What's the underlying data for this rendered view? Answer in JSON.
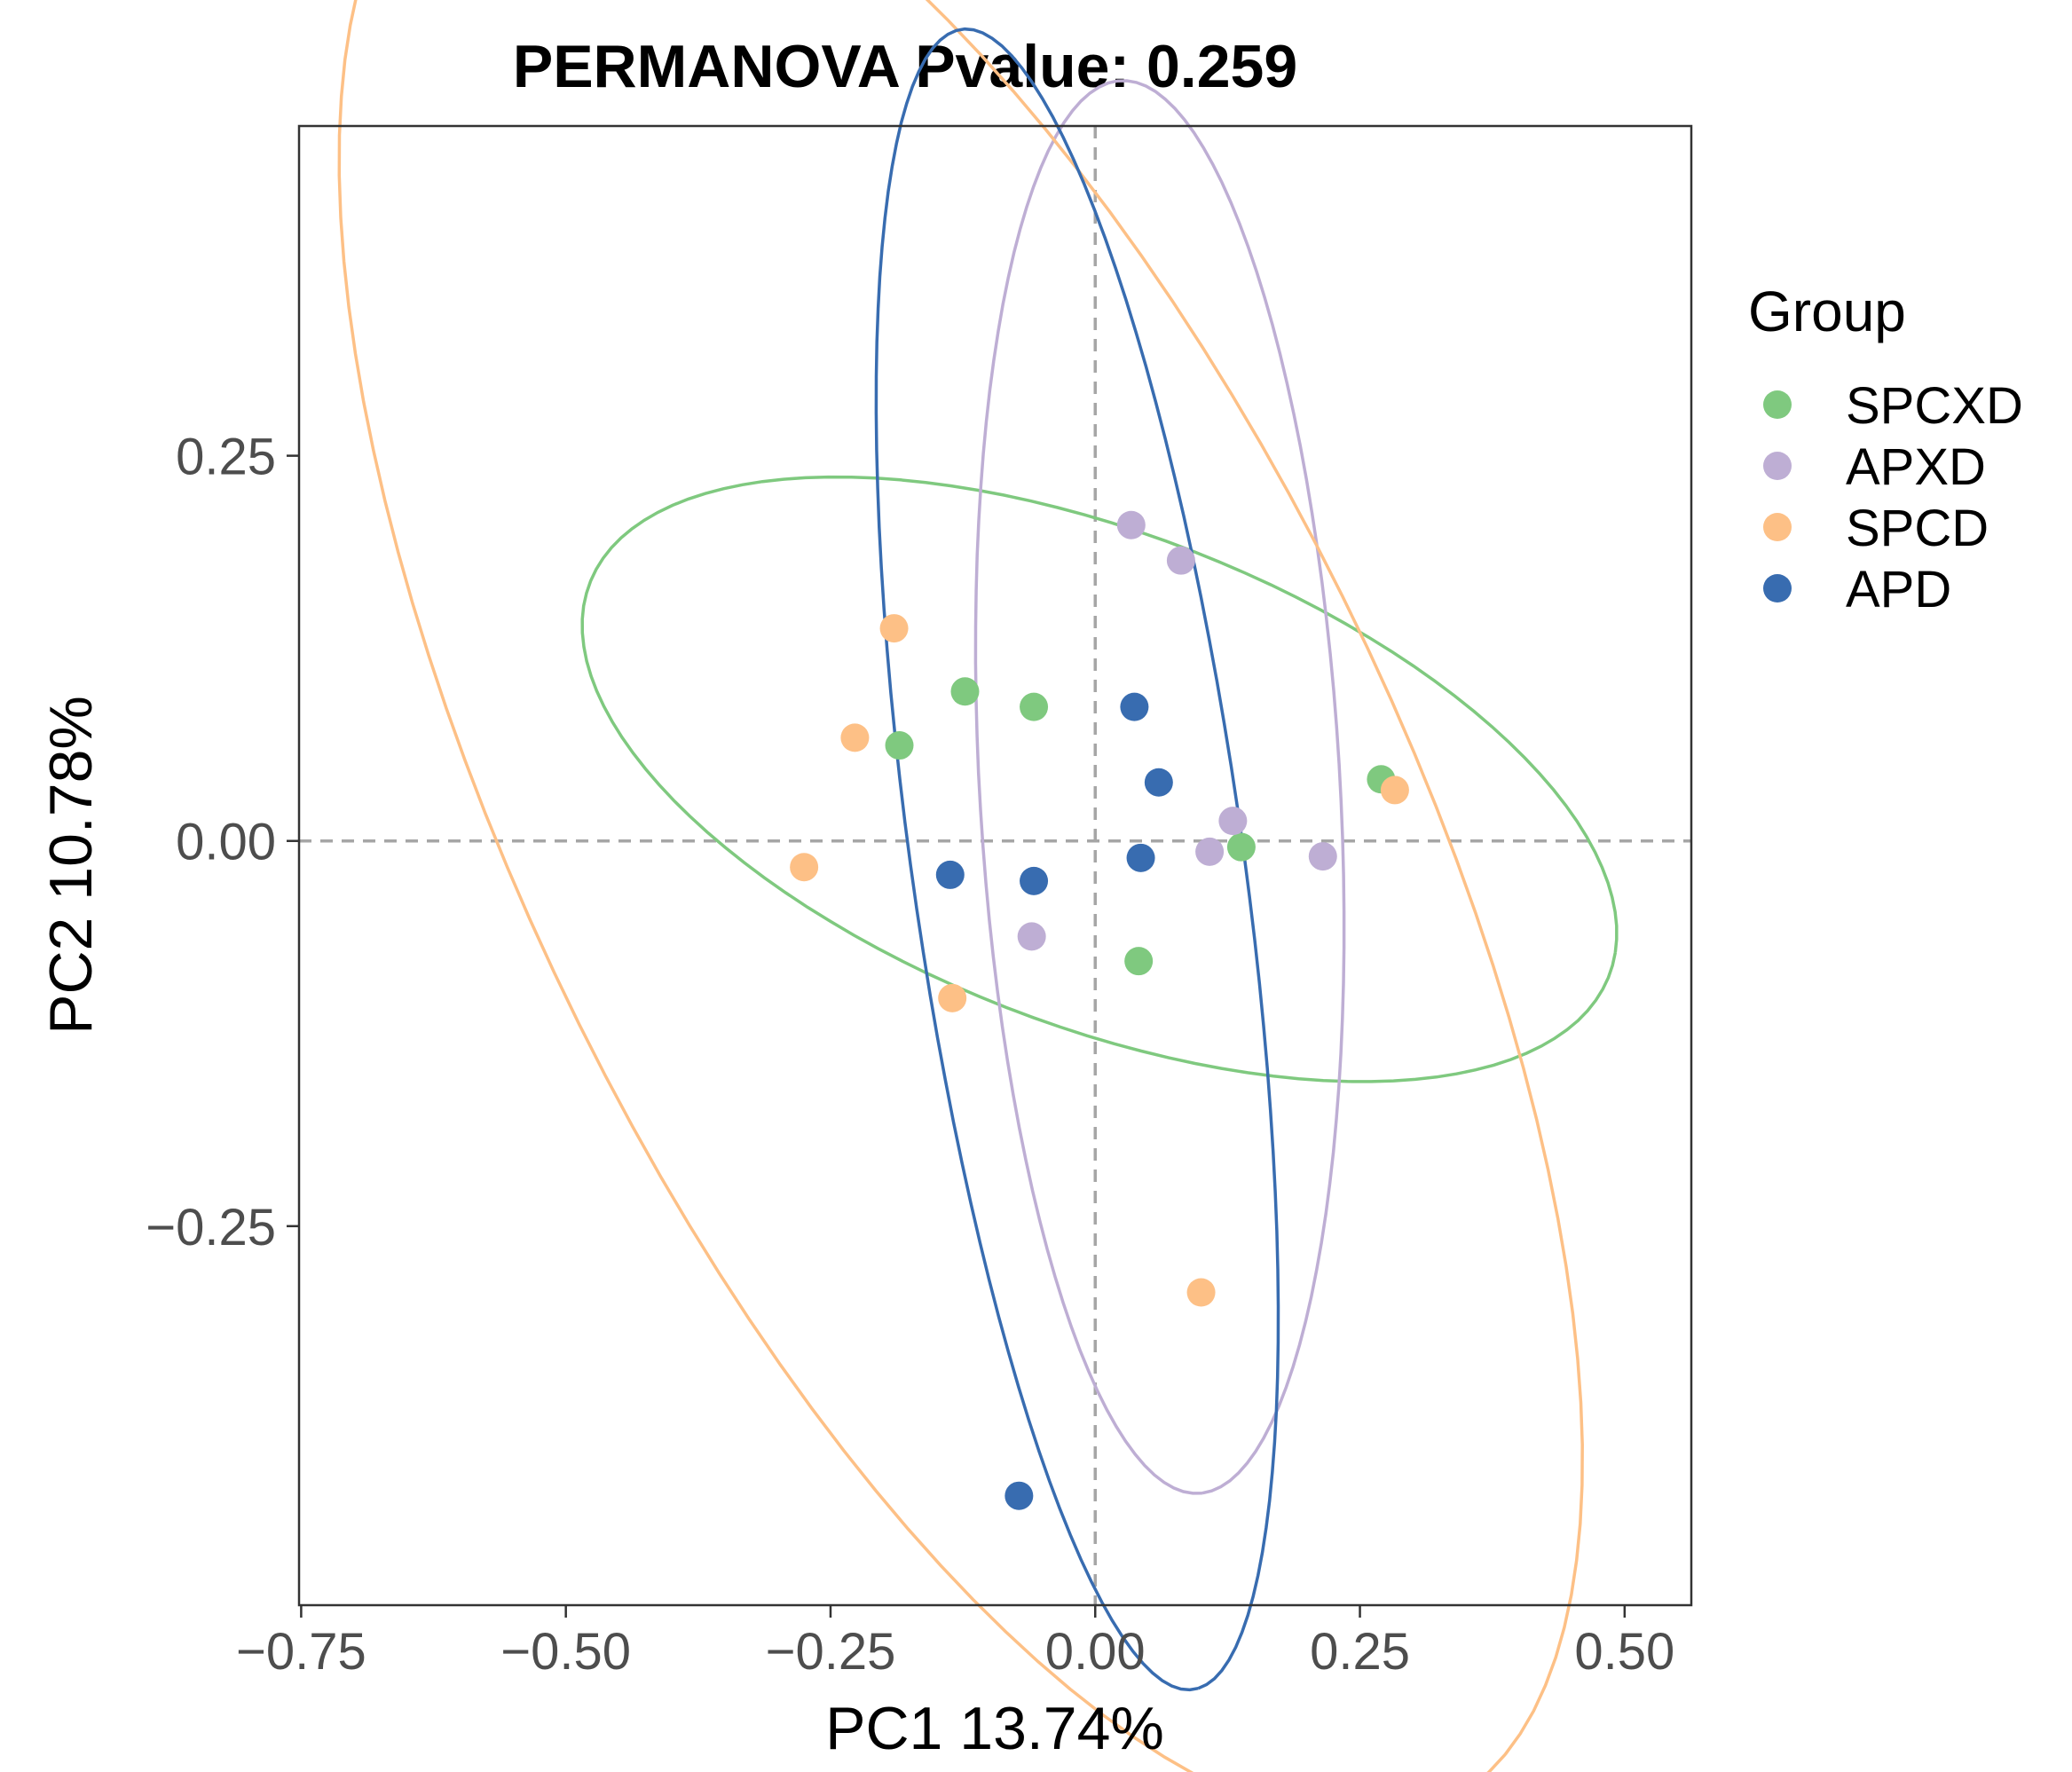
{
  "chart_data": {
    "type": "scatter",
    "title": "PERMANOVA Pvalue: 0.259",
    "xlabel": "PC1 13.74%",
    "ylabel": "PC2 10.78%",
    "xlim": [
      -0.752,
      0.563
    ],
    "ylim": [
      -0.496,
      0.464
    ],
    "x_ticks": [
      -0.75,
      -0.5,
      -0.25,
      0.0,
      0.25,
      0.5
    ],
    "x_tick_labels": [
      "−0.75",
      "−0.50",
      "−0.25",
      "0.00",
      "0.25",
      "0.50"
    ],
    "y_ticks": [
      0.25,
      0.0,
      -0.25
    ],
    "y_tick_labels": [
      "0.25",
      "0.00",
      "−0.25"
    ],
    "reference_lines": {
      "x": 0.0,
      "y": 0.0
    },
    "grid": false,
    "legend": {
      "title": "Group",
      "position": "right"
    },
    "series": [
      {
        "name": "SPCXD",
        "color": "#7fc97f",
        "points": [
          [
            -0.123,
            0.097
          ],
          [
            -0.058,
            0.087
          ],
          [
            -0.185,
            0.062
          ],
          [
            0.27,
            0.04
          ],
          [
            0.138,
            -0.004
          ],
          [
            0.041,
            -0.078
          ]
        ],
        "ellipse": {
          "center": [
            0.004,
            0.04
          ],
          "semi_axes": [
            0.5,
            0.165
          ],
          "angle_deg": -13
        }
      },
      {
        "name": "APXD",
        "color": "#beaed4",
        "points": [
          [
            0.034,
            0.205
          ],
          [
            0.081,
            0.182
          ],
          [
            0.13,
            0.013
          ],
          [
            0.108,
            -0.007
          ],
          [
            0.215,
            -0.01
          ],
          [
            -0.06,
            -0.062
          ]
        ],
        "ellipse": {
          "center": [
            0.061,
            0.035
          ],
          "semi_axes": [
            0.46,
            0.17
          ],
          "angle_deg": -85
        }
      },
      {
        "name": "SPCD",
        "color": "#fdc086",
        "points": [
          [
            -0.19,
            0.138
          ],
          [
            -0.227,
            0.067
          ],
          [
            -0.275,
            -0.017
          ],
          [
            -0.135,
            -0.102
          ],
          [
            0.283,
            0.033
          ],
          [
            0.1,
            -0.293
          ]
        ],
        "ellipse": {
          "center": [
            -0.127,
            0.02
          ],
          "semi_axes": [
            0.8,
            0.37
          ],
          "angle_deg": -50
        }
      },
      {
        "name": "APD",
        "color": "#386cb0",
        "points": [
          [
            0.037,
            0.087
          ],
          [
            0.06,
            0.038
          ],
          [
            0.043,
            -0.011
          ],
          [
            -0.137,
            -0.022
          ],
          [
            -0.058,
            -0.026
          ],
          [
            -0.072,
            -0.425
          ]
        ],
        "ellipse": {
          "center": [
            -0.017,
            -0.012
          ],
          "semi_axes": [
            0.55,
            0.155
          ],
          "angle_deg": -78
        }
      }
    ]
  }
}
